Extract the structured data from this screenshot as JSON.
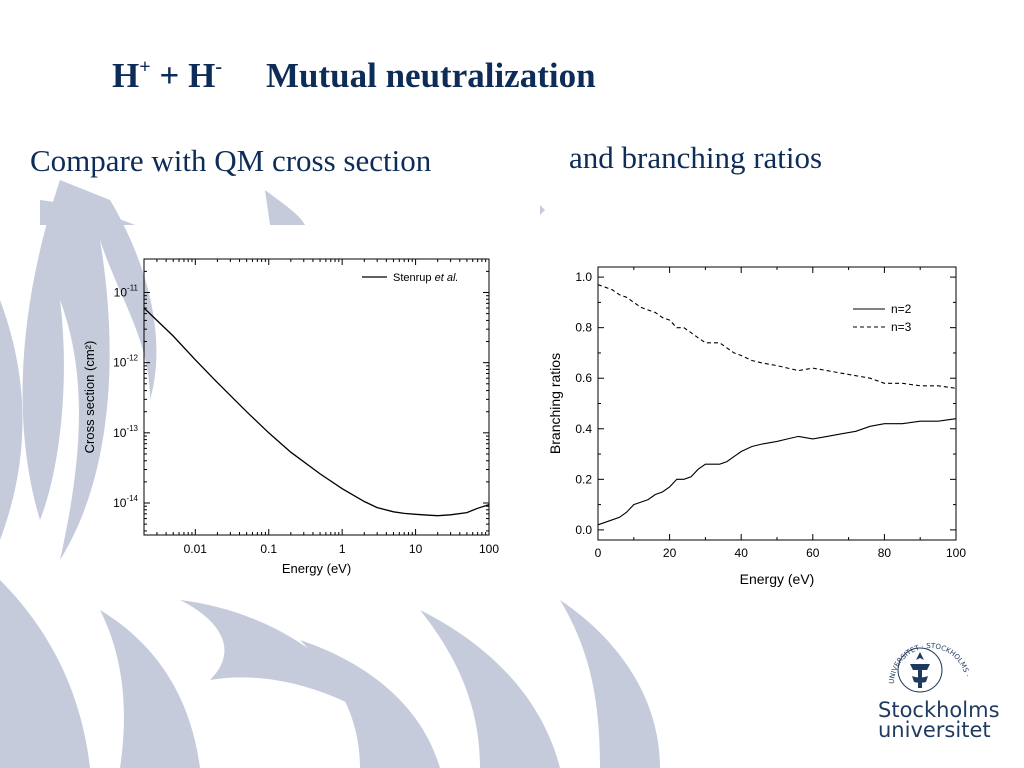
{
  "slide": {
    "title_part1": "H",
    "title_sup1": "+",
    "title_part2": " + H",
    "title_sup2": "-",
    "title_part3": "Mutual neutralization",
    "subtitle_left": "Compare with QM cross section",
    "subtitle_right": "and branching ratios",
    "logo_line1": "Stockholms",
    "logo_line2": "universitet",
    "seal_text": "UNIVERSITET · STOCKHOLMS ·",
    "colors": {
      "title": "#0d2c57",
      "background_art": "#c5cbdb",
      "logo": "#1f3a5f"
    }
  },
  "chart_data": [
    {
      "type": "line",
      "title": "",
      "xlabel": "Energy (eV)",
      "ylabel": "Cross section (cm²)",
      "xscale": "log",
      "yscale": "log",
      "xlim": [
        0.002,
        100
      ],
      "ylim": [
        3.5e-15,
        3e-11
      ],
      "xticks": [
        0.01,
        0.1,
        1,
        10,
        100
      ],
      "xtick_labels": [
        "0.01",
        "0.1",
        "1",
        "10",
        "100"
      ],
      "yticks": [
        1e-14,
        1e-13,
        1e-12,
        1e-11
      ],
      "ytick_labels": [
        {
          "base": "10",
          "exp": "-14"
        },
        {
          "base": "10",
          "exp": "-13"
        },
        {
          "base": "10",
          "exp": "-12"
        },
        {
          "base": "10",
          "exp": "-11"
        }
      ],
      "legend": {
        "position": "top-right",
        "label_plain": "Stenrup ",
        "label_italic": "et al."
      },
      "series": [
        {
          "name": "Stenrup et al.",
          "x": [
            0.002,
            0.005,
            0.01,
            0.02,
            0.05,
            0.1,
            0.2,
            0.5,
            1,
            2,
            3,
            5,
            7,
            10,
            15,
            20,
            30,
            50,
            70,
            100
          ],
          "y": [
            6e-12,
            2.4e-12,
            1.1e-12,
            5.2e-13,
            2e-13,
            1e-13,
            5.3e-14,
            2.6e-14,
            1.6e-14,
            1.05e-14,
            8.6e-15,
            7.5e-15,
            7.1e-15,
            6.9e-15,
            6.7e-15,
            6.6e-15,
            6.8e-15,
            7.3e-15,
            8.4e-15,
            9.5e-15
          ]
        }
      ]
    },
    {
      "type": "line",
      "title": "",
      "xlabel": "Energy (eV)",
      "ylabel": "Branching ratios",
      "xlim": [
        0,
        100
      ],
      "ylim": [
        -0.04,
        1.04
      ],
      "xticks": [
        0,
        20,
        40,
        60,
        80,
        100
      ],
      "xtick_labels": [
        "0",
        "20",
        "40",
        "60",
        "80",
        "100"
      ],
      "yticks": [
        0,
        0.2,
        0.4,
        0.6,
        0.8,
        1.0
      ],
      "ytick_labels": [
        "0.0",
        "0.2",
        "0.4",
        "0.6",
        "0.8",
        "1.0"
      ],
      "legend": {
        "position": "top-right"
      },
      "series": [
        {
          "name": "n=2",
          "style": "solid",
          "x": [
            0,
            2,
            4,
            6,
            8,
            10,
            12,
            14,
            16,
            18,
            20,
            22,
            24,
            26,
            28,
            30,
            32,
            34,
            36,
            38,
            40,
            43,
            46,
            50,
            53,
            56,
            60,
            64,
            68,
            72,
            76,
            80,
            85,
            90,
            95,
            100
          ],
          "y": [
            0.02,
            0.03,
            0.04,
            0.05,
            0.07,
            0.1,
            0.11,
            0.12,
            0.14,
            0.15,
            0.17,
            0.2,
            0.2,
            0.21,
            0.24,
            0.26,
            0.26,
            0.26,
            0.27,
            0.29,
            0.31,
            0.33,
            0.34,
            0.35,
            0.36,
            0.37,
            0.36,
            0.37,
            0.38,
            0.39,
            0.41,
            0.42,
            0.42,
            0.43,
            0.43,
            0.44
          ]
        },
        {
          "name": "n=3",
          "style": "dashed",
          "x": [
            0,
            2,
            4,
            6,
            8,
            10,
            12,
            14,
            16,
            18,
            20,
            22,
            24,
            26,
            28,
            30,
            32,
            34,
            36,
            38,
            40,
            43,
            46,
            50,
            53,
            56,
            60,
            64,
            68,
            72,
            76,
            80,
            85,
            90,
            95,
            100
          ],
          "y": [
            0.97,
            0.96,
            0.95,
            0.93,
            0.92,
            0.9,
            0.88,
            0.87,
            0.86,
            0.84,
            0.83,
            0.8,
            0.8,
            0.78,
            0.76,
            0.74,
            0.74,
            0.74,
            0.72,
            0.7,
            0.69,
            0.67,
            0.66,
            0.65,
            0.64,
            0.63,
            0.64,
            0.63,
            0.62,
            0.61,
            0.6,
            0.58,
            0.58,
            0.57,
            0.57,
            0.56
          ]
        }
      ]
    }
  ]
}
